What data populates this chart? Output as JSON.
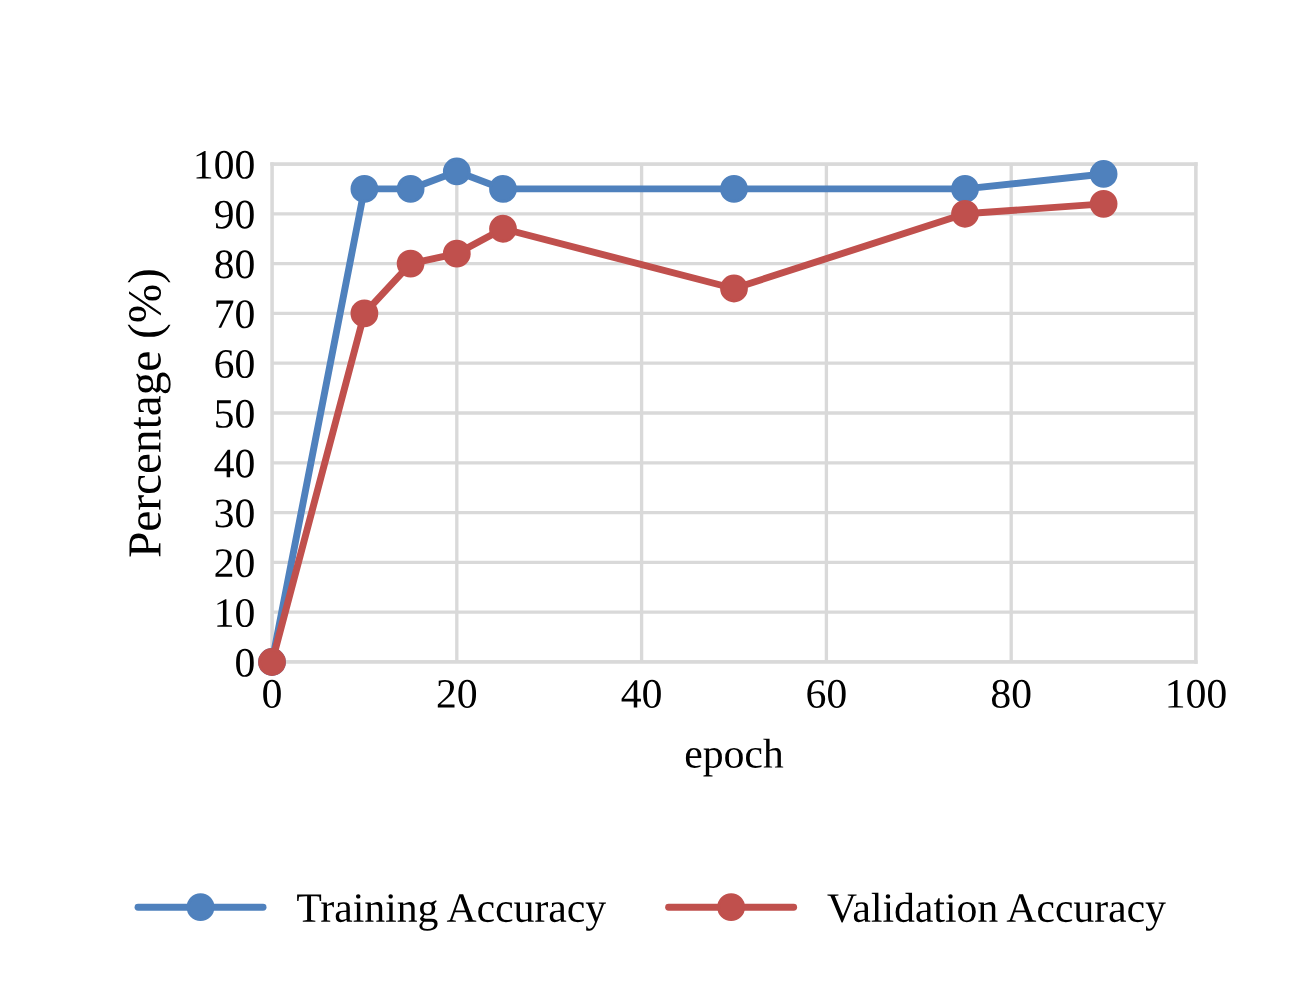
{
  "chart_data": {
    "type": "line",
    "xlabel": "epoch",
    "ylabel": "Percentage (%)",
    "x": [
      0,
      10,
      15,
      20,
      25,
      50,
      75,
      90
    ],
    "series": [
      {
        "name": "Training Accuracy",
        "color": "#4f81bd",
        "values": [
          0,
          95,
          95,
          98.5,
          95,
          95,
          95,
          98
        ]
      },
      {
        "name": "Validation Accuracy",
        "color": "#c0504d",
        "values": [
          0,
          70,
          80,
          82,
          87,
          75,
          90,
          92
        ]
      }
    ],
    "xlim": [
      0,
      100
    ],
    "xticks": [
      0,
      20,
      40,
      60,
      80,
      100
    ],
    "ylim": [
      0,
      100
    ],
    "yticks": [
      0,
      10,
      20,
      30,
      40,
      50,
      60,
      70,
      80,
      90,
      100
    ],
    "grid": true,
    "legend": "bottom",
    "marker": "circle",
    "line_style": "solid"
  }
}
